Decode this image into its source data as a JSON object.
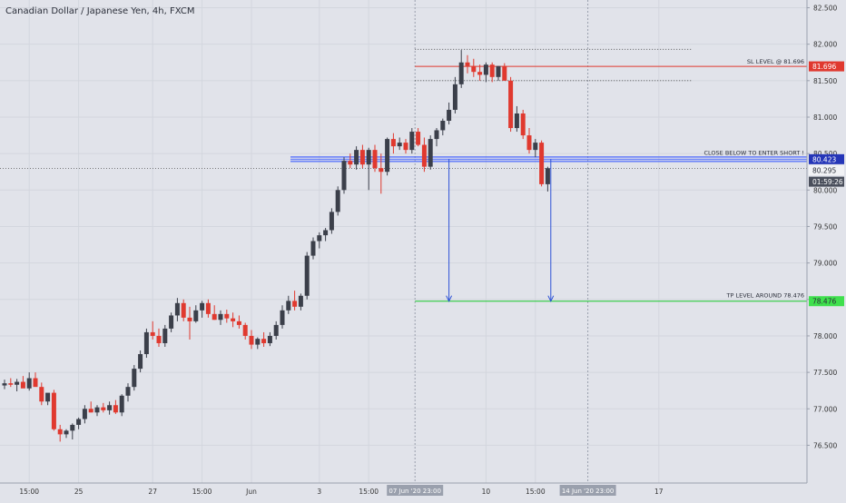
{
  "title": "Canadian Dollar / Japanese Yen, 4h, FXCM",
  "colors": {
    "background": "#e1e3ea",
    "up_candle": "#3b3f4a",
    "down_candle": "#e0392f",
    "sl_line": "#e0392f",
    "entry_line": "#3b5bff",
    "tp_line": "#18c92c",
    "arrow": "#2d52d6",
    "axis_text": "#333"
  },
  "chart_data": {
    "type": "candlestick",
    "title": "Canadian Dollar / Japanese Yen, 4h, FXCM",
    "ylim": [
      76.25,
      82.55
    ],
    "y_ticks": [
      76.5,
      77.0,
      77.5,
      78.0,
      78.5,
      79.0,
      79.5,
      80.0,
      80.5,
      81.0,
      81.5,
      82.0,
      82.5
    ],
    "y_tick_labels": [
      "76.500",
      "77.000",
      "77.500",
      "78.000",
      "78.500",
      "79.000",
      "79.500",
      "80.000",
      "80.500",
      "81.000",
      "81.500",
      "82.000",
      "82.500"
    ],
    "x_tick_labels": [
      {
        "i": 4,
        "label": "15:00"
      },
      {
        "i": 12,
        "label": "25"
      },
      {
        "i": 24,
        "label": "27"
      },
      {
        "i": 32,
        "label": "15:00"
      },
      {
        "i": 40,
        "label": "Jun"
      },
      {
        "i": 51,
        "label": "3"
      },
      {
        "i": 59,
        "label": "15:00"
      },
      {
        "i": 78,
        "label": "10"
      },
      {
        "i": 86,
        "label": "15:00"
      },
      {
        "i": 106,
        "label": "17"
      }
    ],
    "x_highlight_labels": [
      {
        "i": 66.5,
        "label": "07 Jun '20 23:00"
      },
      {
        "i": 94.5,
        "label": "14 Jun '20 23:00"
      }
    ],
    "candles": [
      {
        "o": 77.32,
        "h": 77.4,
        "l": 77.27,
        "c": 77.35
      },
      {
        "o": 77.35,
        "h": 77.42,
        "l": 77.3,
        "c": 77.33
      },
      {
        "o": 77.33,
        "h": 77.41,
        "l": 77.24,
        "c": 77.37
      },
      {
        "o": 77.37,
        "h": 77.45,
        "l": 77.3,
        "c": 77.28
      },
      {
        "o": 77.28,
        "h": 77.5,
        "l": 77.25,
        "c": 77.42
      },
      {
        "o": 77.42,
        "h": 77.5,
        "l": 77.35,
        "c": 77.3
      },
      {
        "o": 77.3,
        "h": 77.36,
        "l": 77.05,
        "c": 77.1
      },
      {
        "o": 77.1,
        "h": 77.2,
        "l": 77.05,
        "c": 77.22
      },
      {
        "o": 77.22,
        "h": 77.26,
        "l": 76.7,
        "c": 76.72
      },
      {
        "o": 76.72,
        "h": 76.78,
        "l": 76.55,
        "c": 76.65
      },
      {
        "o": 76.65,
        "h": 76.72,
        "l": 76.6,
        "c": 76.7
      },
      {
        "o": 76.7,
        "h": 76.8,
        "l": 76.58,
        "c": 76.78
      },
      {
        "o": 76.78,
        "h": 76.88,
        "l": 76.72,
        "c": 76.86
      },
      {
        "o": 76.86,
        "h": 77.05,
        "l": 76.8,
        "c": 77.0
      },
      {
        "o": 77.0,
        "h": 77.1,
        "l": 76.95,
        "c": 76.95
      },
      {
        "o": 76.95,
        "h": 77.05,
        "l": 76.9,
        "c": 77.02
      },
      {
        "o": 77.02,
        "h": 77.08,
        "l": 76.95,
        "c": 76.98
      },
      {
        "o": 76.98,
        "h": 77.1,
        "l": 76.92,
        "c": 77.05
      },
      {
        "o": 77.05,
        "h": 77.12,
        "l": 76.93,
        "c": 76.95
      },
      {
        "o": 76.95,
        "h": 77.2,
        "l": 76.9,
        "c": 77.18
      },
      {
        "o": 77.18,
        "h": 77.35,
        "l": 77.1,
        "c": 77.3
      },
      {
        "o": 77.3,
        "h": 77.6,
        "l": 77.25,
        "c": 77.55
      },
      {
        "o": 77.55,
        "h": 77.8,
        "l": 77.5,
        "c": 77.75
      },
      {
        "o": 77.75,
        "h": 78.1,
        "l": 77.7,
        "c": 78.05
      },
      {
        "o": 78.05,
        "h": 78.2,
        "l": 77.95,
        "c": 78.0
      },
      {
        "o": 78.0,
        "h": 78.1,
        "l": 77.85,
        "c": 77.9
      },
      {
        "o": 77.9,
        "h": 78.15,
        "l": 77.85,
        "c": 78.1
      },
      {
        "o": 78.1,
        "h": 78.32,
        "l": 78.05,
        "c": 78.28
      },
      {
        "o": 78.28,
        "h": 78.52,
        "l": 78.2,
        "c": 78.45
      },
      {
        "o": 78.45,
        "h": 78.5,
        "l": 78.2,
        "c": 78.25
      },
      {
        "o": 78.25,
        "h": 78.4,
        "l": 77.95,
        "c": 78.2
      },
      {
        "o": 78.2,
        "h": 78.42,
        "l": 78.18,
        "c": 78.35
      },
      {
        "o": 78.35,
        "h": 78.48,
        "l": 78.25,
        "c": 78.45
      },
      {
        "o": 78.45,
        "h": 78.5,
        "l": 78.25,
        "c": 78.3
      },
      {
        "o": 78.3,
        "h": 78.42,
        "l": 78.22,
        "c": 78.22
      },
      {
        "o": 78.22,
        "h": 78.35,
        "l": 78.15,
        "c": 78.3
      },
      {
        "o": 78.3,
        "h": 78.36,
        "l": 78.18,
        "c": 78.24
      },
      {
        "o": 78.24,
        "h": 78.32,
        "l": 78.12,
        "c": 78.2
      },
      {
        "o": 78.2,
        "h": 78.28,
        "l": 78.1,
        "c": 78.15
      },
      {
        "o": 78.15,
        "h": 78.18,
        "l": 77.95,
        "c": 78.0
      },
      {
        "o": 78.0,
        "h": 78.08,
        "l": 77.82,
        "c": 77.88
      },
      {
        "o": 77.88,
        "h": 77.98,
        "l": 77.82,
        "c": 77.96
      },
      {
        "o": 77.96,
        "h": 78.05,
        "l": 77.85,
        "c": 77.9
      },
      {
        "o": 77.9,
        "h": 78.05,
        "l": 77.86,
        "c": 78.0
      },
      {
        "o": 78.0,
        "h": 78.2,
        "l": 77.95,
        "c": 78.15
      },
      {
        "o": 78.15,
        "h": 78.42,
        "l": 78.1,
        "c": 78.35
      },
      {
        "o": 78.35,
        "h": 78.55,
        "l": 78.3,
        "c": 78.48
      },
      {
        "o": 78.48,
        "h": 78.62,
        "l": 78.35,
        "c": 78.4
      },
      {
        "o": 78.4,
        "h": 78.58,
        "l": 78.35,
        "c": 78.55
      },
      {
        "o": 78.55,
        "h": 79.15,
        "l": 78.5,
        "c": 79.1
      },
      {
        "o": 79.1,
        "h": 79.35,
        "l": 79.05,
        "c": 79.3
      },
      {
        "o": 79.3,
        "h": 79.42,
        "l": 79.2,
        "c": 79.38
      },
      {
        "o": 79.38,
        "h": 79.48,
        "l": 79.3,
        "c": 79.45
      },
      {
        "o": 79.45,
        "h": 79.75,
        "l": 79.4,
        "c": 79.7
      },
      {
        "o": 79.7,
        "h": 80.05,
        "l": 79.65,
        "c": 80.0
      },
      {
        "o": 80.0,
        "h": 80.45,
        "l": 79.95,
        "c": 80.4
      },
      {
        "o": 80.4,
        "h": 80.5,
        "l": 80.3,
        "c": 80.35
      },
      {
        "o": 80.35,
        "h": 80.6,
        "l": 80.28,
        "c": 80.55
      },
      {
        "o": 80.55,
        "h": 80.62,
        "l": 80.3,
        "c": 80.35
      },
      {
        "o": 80.35,
        "h": 80.58,
        "l": 80.0,
        "c": 80.55
      },
      {
        "o": 80.55,
        "h": 80.62,
        "l": 80.25,
        "c": 80.3
      },
      {
        "o": 80.3,
        "h": 80.5,
        "l": 79.95,
        "c": 80.25
      },
      {
        "o": 80.25,
        "h": 80.72,
        "l": 80.2,
        "c": 80.7
      },
      {
        "o": 80.7,
        "h": 80.78,
        "l": 80.5,
        "c": 80.6
      },
      {
        "o": 80.6,
        "h": 80.72,
        "l": 80.55,
        "c": 80.65
      },
      {
        "o": 80.65,
        "h": 80.7,
        "l": 80.5,
        "c": 80.55
      },
      {
        "o": 80.55,
        "h": 80.85,
        "l": 80.5,
        "c": 80.8
      },
      {
        "o": 80.8,
        "h": 80.85,
        "l": 80.6,
        "c": 80.62
      },
      {
        "o": 80.62,
        "h": 80.72,
        "l": 80.25,
        "c": 80.32
      },
      {
        "o": 80.32,
        "h": 80.75,
        "l": 80.28,
        "c": 80.7
      },
      {
        "o": 80.7,
        "h": 80.85,
        "l": 80.6,
        "c": 80.82
      },
      {
        "o": 80.82,
        "h": 80.98,
        "l": 80.75,
        "c": 80.95
      },
      {
        "o": 80.95,
        "h": 81.2,
        "l": 80.9,
        "c": 81.1
      },
      {
        "o": 81.1,
        "h": 81.55,
        "l": 81.05,
        "c": 81.45
      },
      {
        "o": 81.45,
        "h": 81.92,
        "l": 81.4,
        "c": 81.75
      },
      {
        "o": 81.75,
        "h": 81.85,
        "l": 81.6,
        "c": 81.7
      },
      {
        "o": 81.7,
        "h": 81.8,
        "l": 81.55,
        "c": 81.62
      },
      {
        "o": 81.62,
        "h": 81.72,
        "l": 81.5,
        "c": 81.58
      },
      {
        "o": 81.58,
        "h": 81.75,
        "l": 81.48,
        "c": 81.72
      },
      {
        "o": 81.72,
        "h": 81.75,
        "l": 81.48,
        "c": 81.55
      },
      {
        "o": 81.55,
        "h": 81.7,
        "l": 81.5,
        "c": 81.7
      },
      {
        "o": 81.7,
        "h": 81.74,
        "l": 81.5,
        "c": 81.5
      },
      {
        "o": 81.5,
        "h": 81.55,
        "l": 80.8,
        "c": 80.85
      },
      {
        "o": 80.85,
        "h": 81.15,
        "l": 80.8,
        "c": 81.05
      },
      {
        "o": 81.05,
        "h": 81.1,
        "l": 80.7,
        "c": 80.75
      },
      {
        "o": 80.75,
        "h": 80.85,
        "l": 80.5,
        "c": 80.55
      },
      {
        "o": 80.55,
        "h": 80.7,
        "l": 80.45,
        "c": 80.65
      },
      {
        "o": 80.65,
        "h": 80.68,
        "l": 80.05,
        "c": 80.08
      },
      {
        "o": 80.08,
        "h": 80.32,
        "l": 79.98,
        "c": 80.3
      }
    ],
    "levels": [
      {
        "name": "sl",
        "value": 81.696,
        "label": "SL LEVEL @ 81.696",
        "price_tag": "81.696"
      },
      {
        "name": "entry",
        "value": 80.423,
        "label": "CLOSE BELOW TO ENTER SHORT !",
        "price_tag": "80.423"
      },
      {
        "name": "tp",
        "value": 78.476,
        "label": "TP LEVEL AROUND 78.476",
        "price_tag": "78.476"
      }
    ],
    "dotted_levels": [
      81.93,
      81.5
    ],
    "current_price": {
      "value": 80.295,
      "label": "80.295",
      "countdown": "01:59:26"
    },
    "vertical_markers": [
      66.5,
      94.5
    ],
    "arrows": [
      {
        "from_i": 72,
        "to_i": 72,
        "from_y": 80.423,
        "to_y": 78.476
      },
      {
        "from_i": 88.5,
        "to_i": 88.5,
        "from_y": 80.423,
        "to_y": 78.476
      }
    ]
  }
}
